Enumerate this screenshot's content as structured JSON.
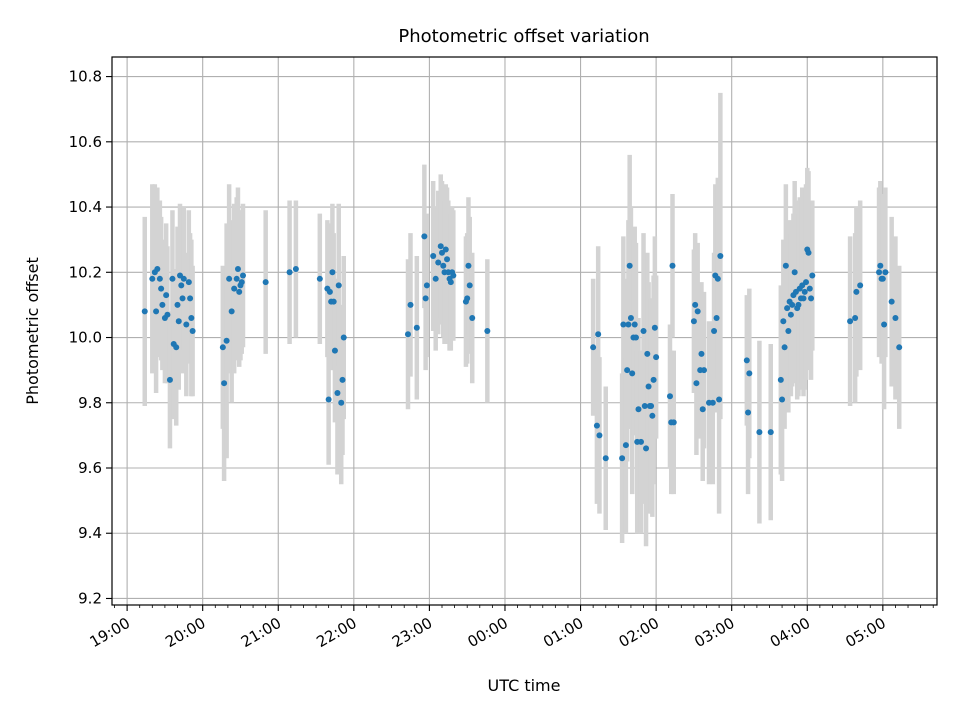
{
  "chart_data": {
    "type": "scatter",
    "title": "Photometric offset variation",
    "xlabel": "UTC time",
    "ylabel": "Photometric offset",
    "xlim": [
      "18:48",
      "05:43"
    ],
    "ylim": [
      9.18,
      10.86
    ],
    "x_ticks": [
      "19:00",
      "20:00",
      "21:00",
      "22:00",
      "23:00",
      "00:00",
      "01:00",
      "02:00",
      "03:00",
      "04:00",
      "05:00"
    ],
    "y_ticks": [
      9.2,
      9.4,
      9.6,
      9.8,
      10.0,
      10.2,
      10.4,
      10.6,
      10.8
    ],
    "y_tick_labels": [
      "9.2",
      "9.4",
      "9.6",
      "9.8",
      "10.0",
      "10.2",
      "10.4",
      "10.6",
      "10.8"
    ],
    "grid": true,
    "colors": {
      "points": "#1f77b4",
      "errorbars": "#d3d3d3",
      "grid": "#b0b0b0"
    },
    "series": [
      {
        "points": [
          [
            "19:14",
            10.08,
            0.29
          ],
          [
            "19:20",
            10.18,
            0.29
          ],
          [
            "19:22",
            10.2,
            0.27
          ],
          [
            "19:23",
            10.08,
            0.25
          ],
          [
            "19:24",
            10.21,
            0.25
          ],
          [
            "19:26",
            10.18,
            0.24
          ],
          [
            "19:27",
            10.15,
            0.22
          ],
          [
            "19:28",
            10.1,
            0.2
          ],
          [
            "19:30",
            10.06,
            0.2
          ],
          [
            "19:31",
            10.13,
            0.22
          ],
          [
            "19:32",
            10.07,
            0.21
          ],
          [
            "19:34",
            9.87,
            0.21
          ],
          [
            "19:36",
            10.18,
            0.21
          ],
          [
            "19:37",
            9.98,
            0.23
          ],
          [
            "19:39",
            9.97,
            0.24
          ],
          [
            "19:40",
            10.1,
            0.24
          ],
          [
            "19:41",
            10.05,
            0.21
          ],
          [
            "19:42",
            10.19,
            0.22
          ],
          [
            "19:43",
            10.16,
            0.21
          ],
          [
            "19:44",
            10.12,
            0.23
          ],
          [
            "19:45",
            10.18,
            0.22
          ],
          [
            "19:47",
            10.04,
            0.22
          ],
          [
            "19:49",
            10.17,
            0.22
          ],
          [
            "19:50",
            10.12,
            0.2
          ],
          [
            "19:51",
            10.06,
            0.24
          ],
          [
            "19:52",
            10.02,
            0.2
          ],
          [
            "20:16",
            9.97,
            0.25
          ],
          [
            "20:17",
            9.86,
            0.3
          ],
          [
            "20:19",
            9.99,
            0.36
          ],
          [
            "20:21",
            10.18,
            0.29
          ],
          [
            "20:23",
            10.08,
            0.28
          ],
          [
            "20:25",
            10.15,
            0.26
          ],
          [
            "20:27",
            10.18,
            0.25
          ],
          [
            "20:28",
            10.21,
            0.25
          ],
          [
            "20:29",
            10.14,
            0.23
          ],
          [
            "20:30",
            10.16,
            0.23
          ],
          [
            "20:31",
            10.17,
            0.22
          ],
          [
            "20:32",
            10.19,
            0.22
          ],
          [
            "20:50",
            10.17,
            0.22
          ],
          [
            "21:09",
            10.2,
            0.22
          ],
          [
            "21:14",
            10.21,
            0.21
          ],
          [
            "21:33",
            10.18,
            0.2
          ],
          [
            "21:39",
            10.15,
            0.21
          ],
          [
            "21:40",
            9.81,
            0.2
          ],
          [
            "21:41",
            10.14,
            0.21
          ],
          [
            "21:42",
            10.11,
            0.21
          ],
          [
            "21:43",
            10.2,
            0.21
          ],
          [
            "21:44",
            10.11,
            0.21
          ],
          [
            "21:45",
            9.96,
            0.22
          ],
          [
            "21:47",
            9.83,
            0.25
          ],
          [
            "21:48",
            10.16,
            0.25
          ],
          [
            "21:50",
            9.8,
            0.25
          ],
          [
            "21:51",
            9.87,
            0.23
          ],
          [
            "21:52",
            10.0,
            0.25
          ],
          [
            "22:43",
            10.01,
            0.23
          ],
          [
            "22:45",
            10.1,
            0.22
          ],
          [
            "22:50",
            10.03,
            0.22
          ],
          [
            "22:56",
            10.31,
            0.22
          ],
          [
            "22:57",
            10.12,
            0.22
          ],
          [
            "22:58",
            10.16,
            0.22
          ],
          [
            "23:03",
            10.25,
            0.23
          ],
          [
            "23:05",
            10.18,
            0.22
          ],
          [
            "23:07",
            10.23,
            0.22
          ],
          [
            "23:09",
            10.28,
            0.22
          ],
          [
            "23:10",
            10.26,
            0.22
          ],
          [
            "23:11",
            10.22,
            0.22
          ],
          [
            "23:12",
            10.2,
            0.22
          ],
          [
            "23:13",
            10.27,
            0.2
          ],
          [
            "23:14",
            10.24,
            0.22
          ],
          [
            "23:15",
            10.2,
            0.22
          ],
          [
            "23:16",
            10.18,
            0.22
          ],
          [
            "23:17",
            10.17,
            0.21
          ],
          [
            "23:18",
            10.2,
            0.2
          ],
          [
            "23:19",
            10.19,
            0.2
          ],
          [
            "23:29",
            10.11,
            0.2
          ],
          [
            "23:30",
            10.12,
            0.2
          ],
          [
            "23:31",
            10.22,
            0.21
          ],
          [
            "23:32",
            10.16,
            0.21
          ],
          [
            "23:34",
            10.06,
            0.2
          ],
          [
            "23:46",
            10.02,
            0.22
          ],
          [
            "01:10",
            9.97,
            0.21
          ],
          [
            "01:13",
            9.73,
            0.24
          ],
          [
            "01:14",
            10.01,
            0.27
          ],
          [
            "01:15",
            9.7,
            0.24
          ],
          [
            "01:20",
            9.63,
            0.22
          ],
          [
            "01:33",
            9.63,
            0.26
          ],
          [
            "01:34",
            10.04,
            0.27
          ],
          [
            "01:36",
            9.67,
            0.27
          ],
          [
            "01:37",
            9.9,
            0.28
          ],
          [
            "01:38",
            10.04,
            0.32
          ],
          [
            "01:39",
            10.22,
            0.34
          ],
          [
            "01:40",
            10.06,
            0.34
          ],
          [
            "01:41",
            9.89,
            0.37
          ],
          [
            "01:42",
            10.0,
            0.3
          ],
          [
            "01:43",
            10.04,
            0.3
          ],
          [
            "01:44",
            10.0,
            0.29
          ],
          [
            "01:45",
            9.68,
            0.28
          ],
          [
            "01:46",
            9.78,
            0.28
          ],
          [
            "01:48",
            9.68,
            0.28
          ],
          [
            "01:50",
            10.02,
            0.3
          ],
          [
            "01:51",
            9.79,
            0.3
          ],
          [
            "01:52",
            9.66,
            0.3
          ],
          [
            "01:53",
            9.95,
            0.31
          ],
          [
            "01:54",
            9.85,
            0.32
          ],
          [
            "01:55",
            9.79,
            0.33
          ],
          [
            "01:56",
            9.79,
            0.33
          ],
          [
            "01:57",
            9.76,
            0.31
          ],
          [
            "01:58",
            9.87,
            0.32
          ],
          [
            "01:59",
            10.03,
            0.28
          ],
          [
            "02:00",
            9.94,
            0.25
          ],
          [
            "02:11",
            9.82,
            0.22
          ],
          [
            "02:12",
            9.74,
            0.22
          ],
          [
            "02:13",
            10.22,
            0.22
          ],
          [
            "02:14",
            9.74,
            0.22
          ],
          [
            "02:30",
            10.05,
            0.22
          ],
          [
            "02:31",
            10.1,
            0.22
          ],
          [
            "02:32",
            9.86,
            0.22
          ],
          [
            "02:33",
            10.08,
            0.21
          ],
          [
            "02:35",
            9.9,
            0.21
          ],
          [
            "02:36",
            9.95,
            0.22
          ],
          [
            "02:37",
            9.78,
            0.22
          ],
          [
            "02:38",
            9.9,
            0.24
          ],
          [
            "02:42",
            9.8,
            0.25
          ],
          [
            "02:45",
            9.8,
            0.25
          ],
          [
            "02:46",
            10.02,
            0.24
          ],
          [
            "02:47",
            10.19,
            0.28
          ],
          [
            "02:48",
            10.06,
            0.29
          ],
          [
            "02:49",
            10.18,
            0.31
          ],
          [
            "02:50",
            9.81,
            0.35
          ],
          [
            "02:51",
            10.25,
            0.5
          ],
          [
            "03:12",
            9.93,
            0.2
          ],
          [
            "03:13",
            9.77,
            0.25
          ],
          [
            "03:14",
            9.89,
            0.26
          ],
          [
            "03:22",
            9.71,
            0.28
          ],
          [
            "03:31",
            9.71,
            0.27
          ],
          [
            "03:39",
            9.87,
            0.29
          ],
          [
            "03:40",
            9.81,
            0.25
          ],
          [
            "03:41",
            10.05,
            0.25
          ],
          [
            "03:42",
            9.97,
            0.25
          ],
          [
            "03:43",
            10.22,
            0.25
          ],
          [
            "03:44",
            10.09,
            0.25
          ],
          [
            "03:45",
            10.02,
            0.25
          ],
          [
            "03:46",
            10.11,
            0.25
          ],
          [
            "03:47",
            10.07,
            0.25
          ],
          [
            "03:48",
            10.1,
            0.25
          ],
          [
            "03:49",
            10.13,
            0.25
          ],
          [
            "03:50",
            10.2,
            0.28
          ],
          [
            "03:51",
            10.14,
            0.28
          ],
          [
            "03:52",
            10.09,
            0.28
          ],
          [
            "03:53",
            10.1,
            0.28
          ],
          [
            "03:54",
            10.15,
            0.28
          ],
          [
            "03:55",
            10.12,
            0.28
          ],
          [
            "03:56",
            10.16,
            0.3
          ],
          [
            "03:57",
            10.12,
            0.3
          ],
          [
            "03:58",
            10.14,
            0.3
          ],
          [
            "03:59",
            10.17,
            0.3
          ],
          [
            "04:00",
            10.27,
            0.25
          ],
          [
            "04:01",
            10.26,
            0.25
          ],
          [
            "04:02",
            10.15,
            0.25
          ],
          [
            "04:03",
            10.12,
            0.25
          ],
          [
            "04:04",
            10.19,
            0.23
          ],
          [
            "04:34",
            10.05,
            0.26
          ],
          [
            "04:38",
            10.06,
            0.26
          ],
          [
            "04:39",
            10.14,
            0.26
          ],
          [
            "04:42",
            10.16,
            0.26
          ],
          [
            "04:57",
            10.2,
            0.26
          ],
          [
            "04:58",
            10.22,
            0.26
          ],
          [
            "04:59",
            10.18,
            0.26
          ],
          [
            "05:00",
            10.18,
            0.26
          ],
          [
            "05:01",
            10.04,
            0.26
          ],
          [
            "05:02",
            10.2,
            0.26
          ],
          [
            "05:07",
            10.11,
            0.26
          ],
          [
            "05:10",
            10.06,
            0.25
          ],
          [
            "05:13",
            9.97,
            0.25
          ]
        ]
      }
    ]
  }
}
